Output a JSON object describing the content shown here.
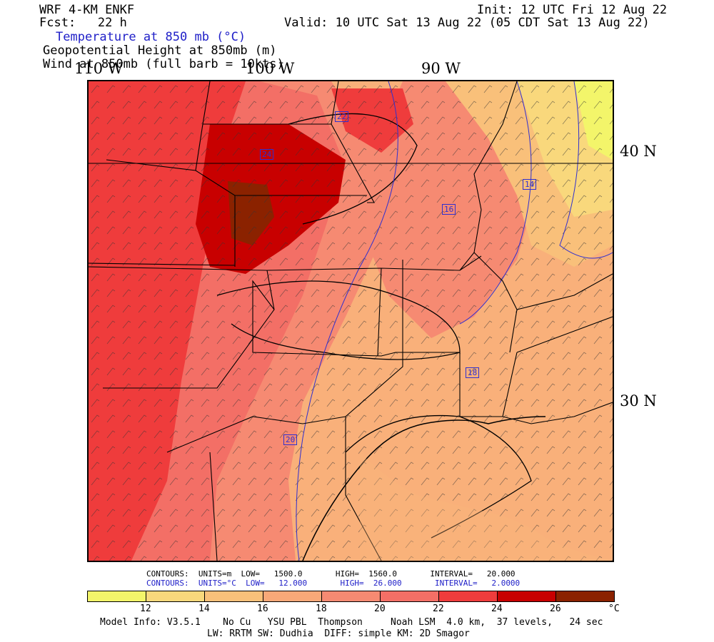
{
  "header": {
    "model": "WRF 4-KM ENKF",
    "fcst": "Fcst:   22 h",
    "init": "Init: 12 UTC Fri 12 Aug 22",
    "valid": "Valid: 10 UTC Sat 13 Aug 22 (05 CDT Sat 13 Aug 22)",
    "field1": "Temperature at 850 mb (°C)",
    "field2": "Geopotential Height at 850mb (m)",
    "field3": "Wind at 850mb (full barb = 10kts)"
  },
  "axis_labels": {
    "lon_110": "110 W",
    "lon_100": "100 W",
    "lon_90": "90 W",
    "lat_40": "40 N",
    "lat_30": "30 N"
  },
  "contour_labels": [
    "22",
    "24",
    "16",
    "14",
    "18",
    "20"
  ],
  "contours_info": {
    "row1": "CONTOURS:  UNITS=m  LOW=   1500.0       HIGH=  1560.0       INTERVAL=   20.000",
    "row2": "CONTOURS:  UNITS=°C  LOW=   12.000       HIGH=  26.000       INTERVAL=   2.0000"
  },
  "colorbar": {
    "colors": [
      "#f3f56a",
      "#f9d87c",
      "#f9c07a",
      "#f8a878",
      "#f68a72",
      "#f36f66",
      "#ef3c3c",
      "#c80000",
      "#8b2200"
    ],
    "ticks": [
      "12",
      "14",
      "16",
      "18",
      "20",
      "22",
      "24",
      "26",
      "°C"
    ]
  },
  "footer": {
    "line1": "Model Info: V3.5.1    No Cu   YSU PBL  Thompson     Noah LSM  4.0 km,  37 levels,   24 sec",
    "line2": "LW: RRTM SW: Dudhia  DIFF: simple KM: 2D Smagor"
  }
}
